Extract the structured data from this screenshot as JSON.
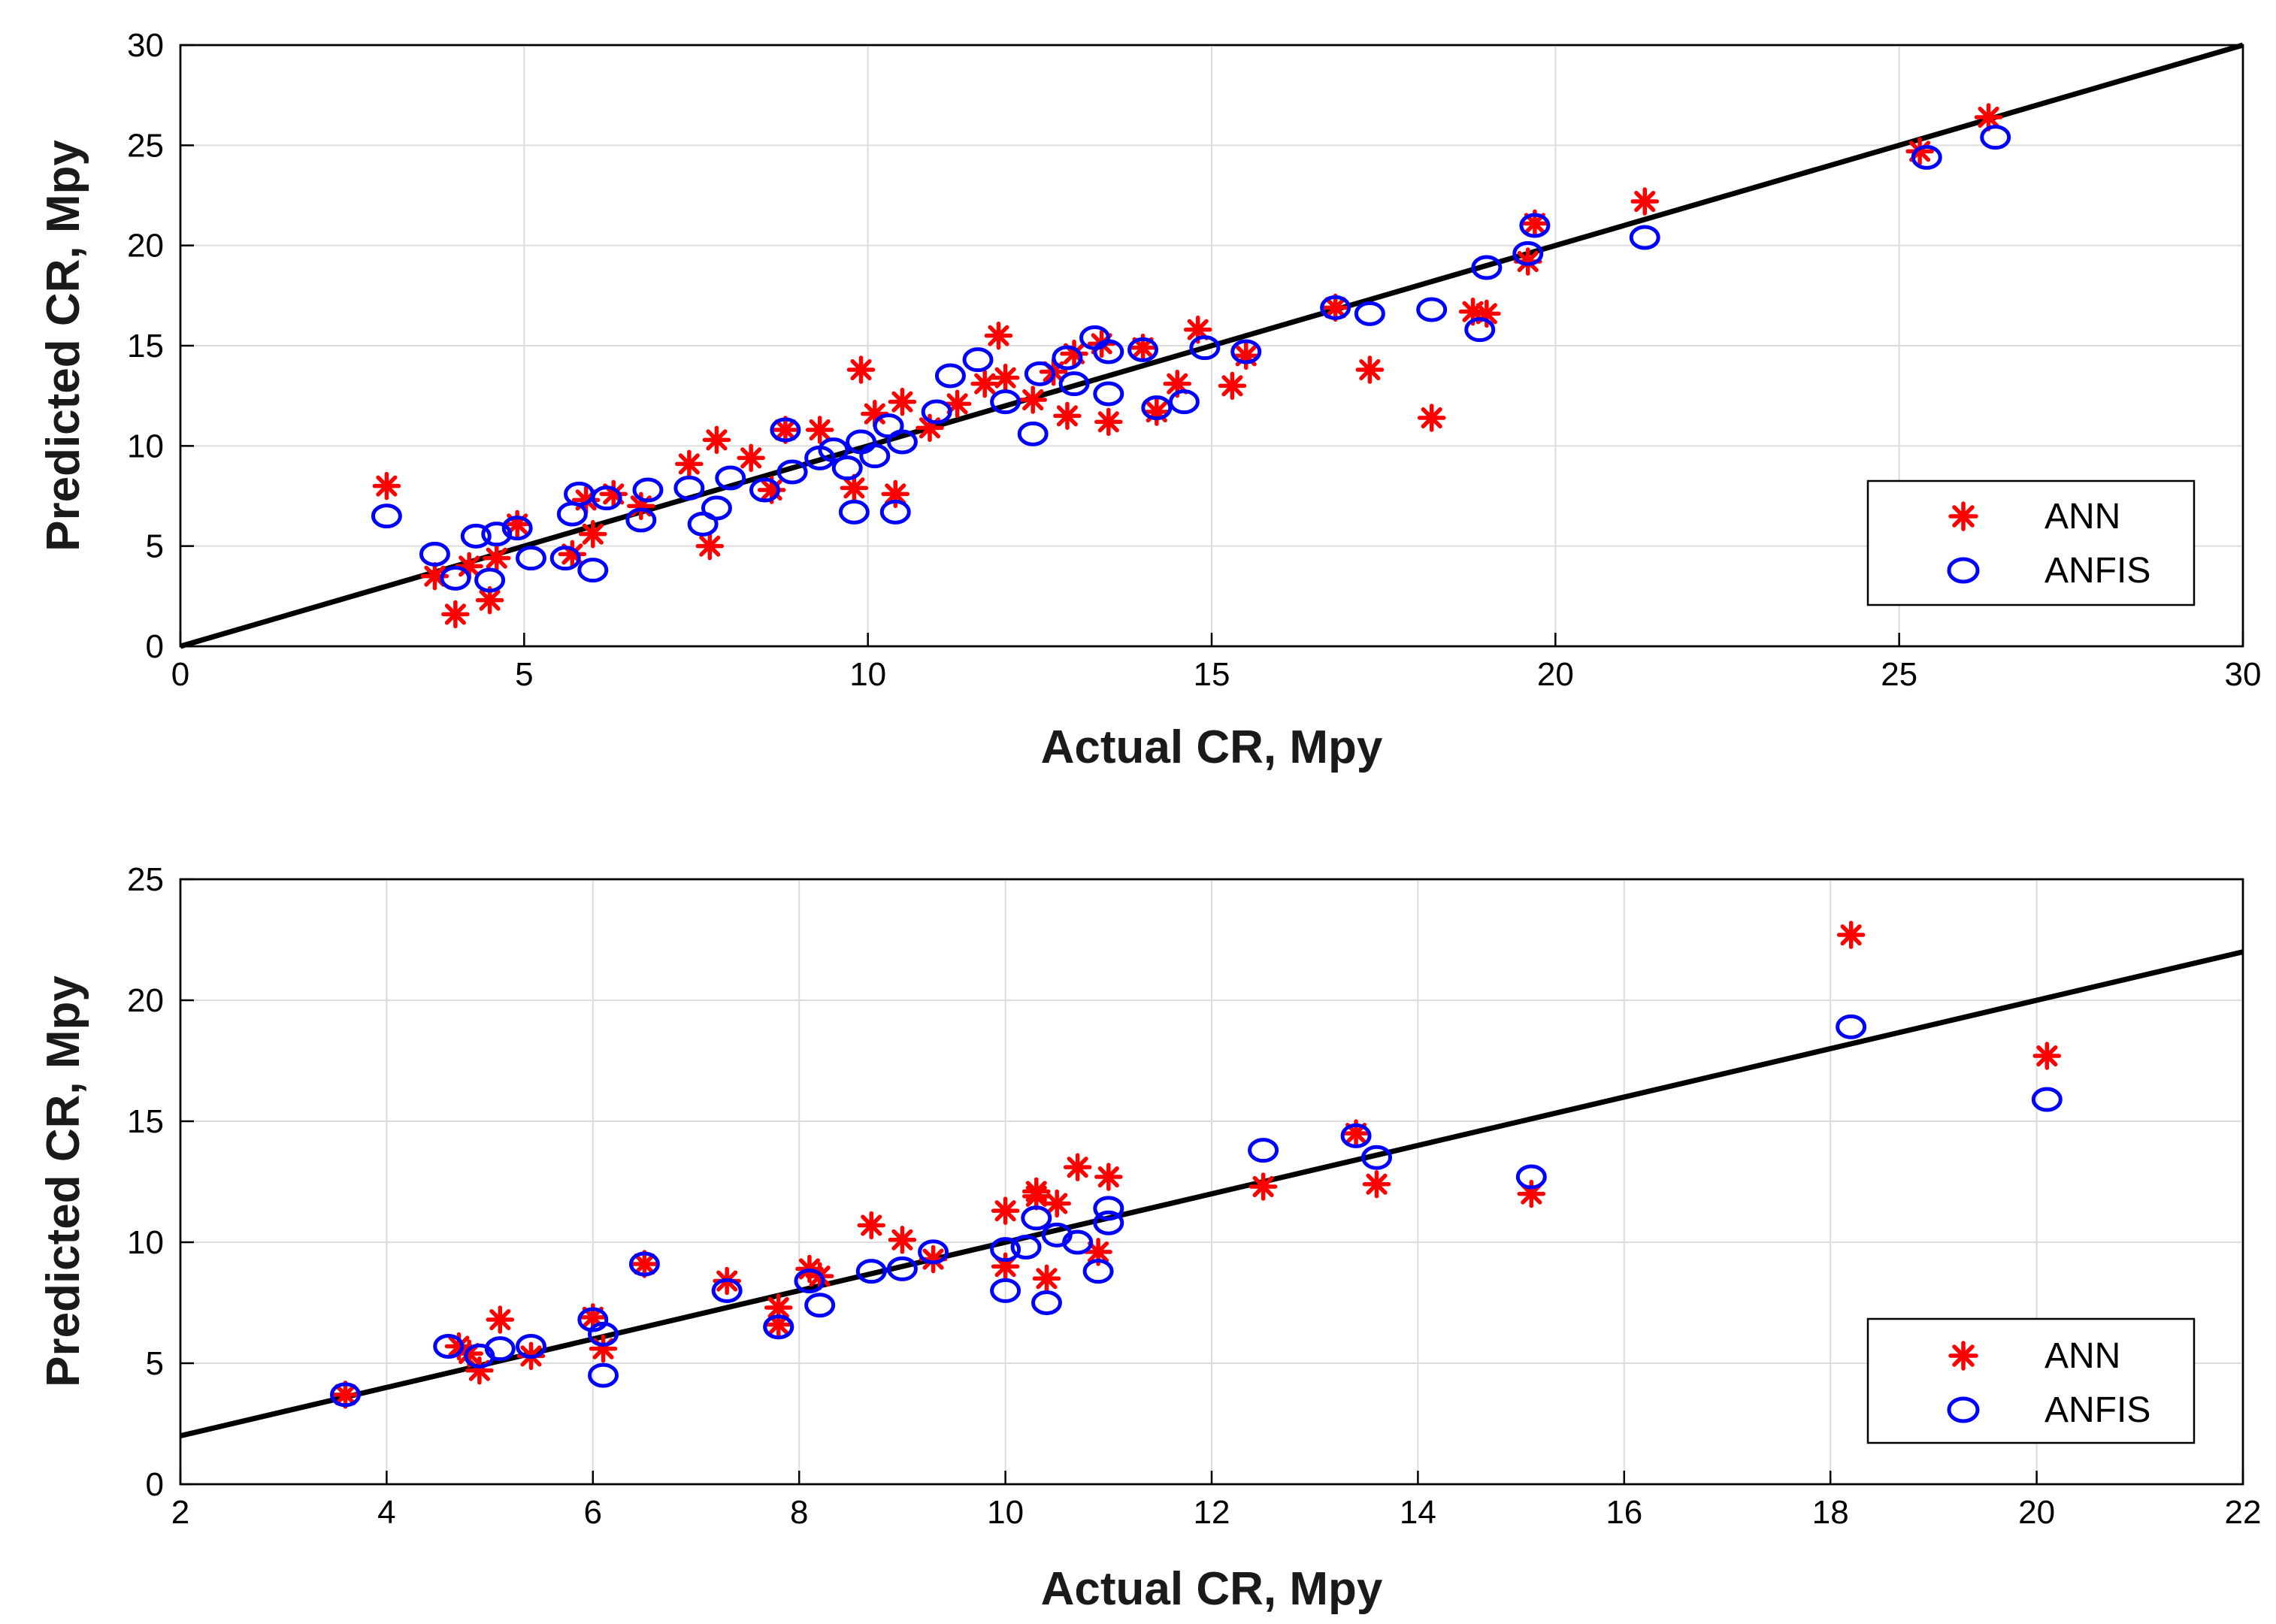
{
  "colors": {
    "ann": "#ff0000",
    "anfis": "#0000ff",
    "fit_line": "#000000",
    "grid": "#dcdcdc"
  },
  "chart_data": [
    {
      "type": "scatter",
      "xlabel": "Actual CR, Mpy",
      "ylabel": "Predicted CR, Mpy",
      "xlim": [
        0,
        30
      ],
      "ylim": [
        0,
        30
      ],
      "xticks": [
        0,
        5,
        10,
        15,
        20,
        25,
        30
      ],
      "yticks": [
        0,
        5,
        10,
        15,
        20,
        25,
        30
      ],
      "grid": true,
      "legend_position": "bottom-right",
      "reference_line": {
        "x": [
          0,
          30
        ],
        "y": [
          0,
          30
        ]
      },
      "series": [
        {
          "name": "ANN",
          "marker": "asterisk",
          "color": "#ff0000",
          "points": [
            [
              3.0,
              8.0
            ],
            [
              3.7,
              3.5
            ],
            [
              4.0,
              1.6
            ],
            [
              4.2,
              4.0
            ],
            [
              4.5,
              2.3
            ],
            [
              4.6,
              4.4
            ],
            [
              4.9,
              6.1
            ],
            [
              5.7,
              4.6
            ],
            [
              5.9,
              7.3
            ],
            [
              6.0,
              5.6
            ],
            [
              6.3,
              7.6
            ],
            [
              6.7,
              7.0
            ],
            [
              7.4,
              9.1
            ],
            [
              7.7,
              5.0
            ],
            [
              7.8,
              10.3
            ],
            [
              8.3,
              9.4
            ],
            [
              8.6,
              7.8
            ],
            [
              8.8,
              10.8
            ],
            [
              9.3,
              10.8
            ],
            [
              9.8,
              7.9
            ],
            [
              9.9,
              13.8
            ],
            [
              10.1,
              11.6
            ],
            [
              10.4,
              7.6
            ],
            [
              10.5,
              12.2
            ],
            [
              10.9,
              10.9
            ],
            [
              11.3,
              12.1
            ],
            [
              11.7,
              13.1
            ],
            [
              11.9,
              15.5
            ],
            [
              12.0,
              13.4
            ],
            [
              12.4,
              12.3
            ],
            [
              12.7,
              13.7
            ],
            [
              12.9,
              11.5
            ],
            [
              13.0,
              14.6
            ],
            [
              13.4,
              15.1
            ],
            [
              13.5,
              11.2
            ],
            [
              14.0,
              14.9
            ],
            [
              14.2,
              11.7
            ],
            [
              14.5,
              13.1
            ],
            [
              14.8,
              15.8
            ],
            [
              15.3,
              13.0
            ],
            [
              15.5,
              14.5
            ],
            [
              16.8,
              16.9
            ],
            [
              17.3,
              13.8
            ],
            [
              18.2,
              11.4
            ],
            [
              18.8,
              16.7
            ],
            [
              19.0,
              16.6
            ],
            [
              19.6,
              19.2
            ],
            [
              19.7,
              21.1
            ],
            [
              21.3,
              22.2
            ],
            [
              25.3,
              24.7
            ],
            [
              26.3,
              26.4
            ]
          ]
        },
        {
          "name": "ANFIS",
          "marker": "circle",
          "color": "#0000ff",
          "points": [
            [
              3.0,
              6.5
            ],
            [
              3.7,
              4.6
            ],
            [
              4.0,
              3.4
            ],
            [
              4.3,
              5.5
            ],
            [
              4.5,
              3.3
            ],
            [
              4.6,
              5.6
            ],
            [
              4.9,
              5.9
            ],
            [
              5.1,
              4.4
            ],
            [
              5.6,
              4.4
            ],
            [
              5.7,
              6.6
            ],
            [
              5.8,
              7.6
            ],
            [
              6.0,
              3.8
            ],
            [
              6.2,
              7.4
            ],
            [
              6.7,
              6.3
            ],
            [
              6.8,
              7.8
            ],
            [
              7.4,
              7.9
            ],
            [
              7.6,
              6.1
            ],
            [
              7.8,
              6.9
            ],
            [
              8.0,
              8.4
            ],
            [
              8.5,
              7.8
            ],
            [
              8.8,
              10.8
            ],
            [
              8.9,
              8.7
            ],
            [
              9.3,
              9.4
            ],
            [
              9.5,
              9.8
            ],
            [
              9.7,
              8.9
            ],
            [
              9.8,
              6.7
            ],
            [
              9.9,
              10.2
            ],
            [
              10.1,
              9.5
            ],
            [
              10.3,
              11.0
            ],
            [
              10.4,
              6.7
            ],
            [
              10.5,
              10.2
            ],
            [
              11.0,
              11.7
            ],
            [
              11.2,
              13.5
            ],
            [
              11.6,
              14.3
            ],
            [
              12.0,
              12.2
            ],
            [
              12.4,
              10.6
            ],
            [
              12.5,
              13.6
            ],
            [
              12.9,
              14.4
            ],
            [
              13.0,
              13.1
            ],
            [
              13.3,
              15.4
            ],
            [
              13.5,
              14.7
            ],
            [
              13.5,
              12.6
            ],
            [
              14.0,
              14.8
            ],
            [
              14.2,
              11.9
            ],
            [
              14.6,
              12.2
            ],
            [
              14.9,
              14.9
            ],
            [
              15.5,
              14.7
            ],
            [
              16.8,
              16.9
            ],
            [
              17.3,
              16.6
            ],
            [
              18.2,
              16.8
            ],
            [
              18.9,
              15.8
            ],
            [
              19.0,
              18.9
            ],
            [
              19.7,
              21.0
            ],
            [
              19.6,
              19.6
            ],
            [
              21.3,
              20.4
            ],
            [
              25.4,
              24.4
            ],
            [
              26.4,
              25.4
            ]
          ]
        }
      ]
    },
    {
      "type": "scatter",
      "xlabel": "Actual CR, Mpy",
      "ylabel": "Predicted CR, Mpy",
      "xlim": [
        2,
        22
      ],
      "ylim": [
        0,
        25
      ],
      "xticks": [
        2,
        4,
        6,
        8,
        10,
        12,
        14,
        16,
        18,
        20,
        22
      ],
      "yticks": [
        0,
        5,
        10,
        15,
        20,
        25
      ],
      "grid": true,
      "legend_position": "bottom-right",
      "reference_line": {
        "x": [
          2,
          22
        ],
        "y": [
          2,
          22
        ]
      },
      "series": [
        {
          "name": "ANN",
          "marker": "asterisk",
          "color": "#ff0000",
          "points": [
            [
              3.6,
              3.7
            ],
            [
              4.7,
              5.7
            ],
            [
              4.8,
              5.4
            ],
            [
              4.9,
              4.7
            ],
            [
              5.1,
              6.8
            ],
            [
              5.4,
              5.3
            ],
            [
              6.0,
              6.9
            ],
            [
              6.1,
              5.6
            ],
            [
              6.5,
              9.1
            ],
            [
              7.3,
              8.4
            ],
            [
              7.8,
              6.6
            ],
            [
              7.8,
              7.3
            ],
            [
              8.1,
              8.9
            ],
            [
              8.2,
              8.6
            ],
            [
              8.7,
              10.7
            ],
            [
              9.0,
              10.1
            ],
            [
              9.3,
              9.3
            ],
            [
              10.0,
              11.3
            ],
            [
              10.0,
              9.0
            ],
            [
              10.3,
              11.9
            ],
            [
              10.3,
              12.1
            ],
            [
              10.4,
              8.5
            ],
            [
              10.5,
              11.6
            ],
            [
              10.7,
              13.1
            ],
            [
              10.9,
              9.6
            ],
            [
              11.0,
              12.7
            ],
            [
              12.5,
              12.3
            ],
            [
              13.4,
              14.5
            ],
            [
              13.6,
              12.4
            ],
            [
              15.1,
              12.0
            ],
            [
              18.2,
              22.7
            ],
            [
              20.1,
              17.7
            ]
          ]
        },
        {
          "name": "ANFIS",
          "marker": "circle",
          "color": "#0000ff",
          "points": [
            [
              3.6,
              3.7
            ],
            [
              4.6,
              5.7
            ],
            [
              4.9,
              5.3
            ],
            [
              5.1,
              5.6
            ],
            [
              5.4,
              5.7
            ],
            [
              6.0,
              6.8
            ],
            [
              6.1,
              6.2
            ],
            [
              6.1,
              4.5
            ],
            [
              6.5,
              9.1
            ],
            [
              7.3,
              8.0
            ],
            [
              7.8,
              6.5
            ],
            [
              7.8,
              6.5
            ],
            [
              8.1,
              8.4
            ],
            [
              8.2,
              7.4
            ],
            [
              8.7,
              8.8
            ],
            [
              9.0,
              8.9
            ],
            [
              9.3,
              9.6
            ],
            [
              10.0,
              9.7
            ],
            [
              10.0,
              8.0
            ],
            [
              10.2,
              9.8
            ],
            [
              10.3,
              11.0
            ],
            [
              10.4,
              7.5
            ],
            [
              10.5,
              10.3
            ],
            [
              10.7,
              10.0
            ],
            [
              10.9,
              8.8
            ],
            [
              11.0,
              11.4
            ],
            [
              11.0,
              10.8
            ],
            [
              12.5,
              13.8
            ],
            [
              13.4,
              14.4
            ],
            [
              13.6,
              13.5
            ],
            [
              15.1,
              12.7
            ],
            [
              18.2,
              18.9
            ],
            [
              20.1,
              15.9
            ]
          ]
        }
      ]
    }
  ]
}
